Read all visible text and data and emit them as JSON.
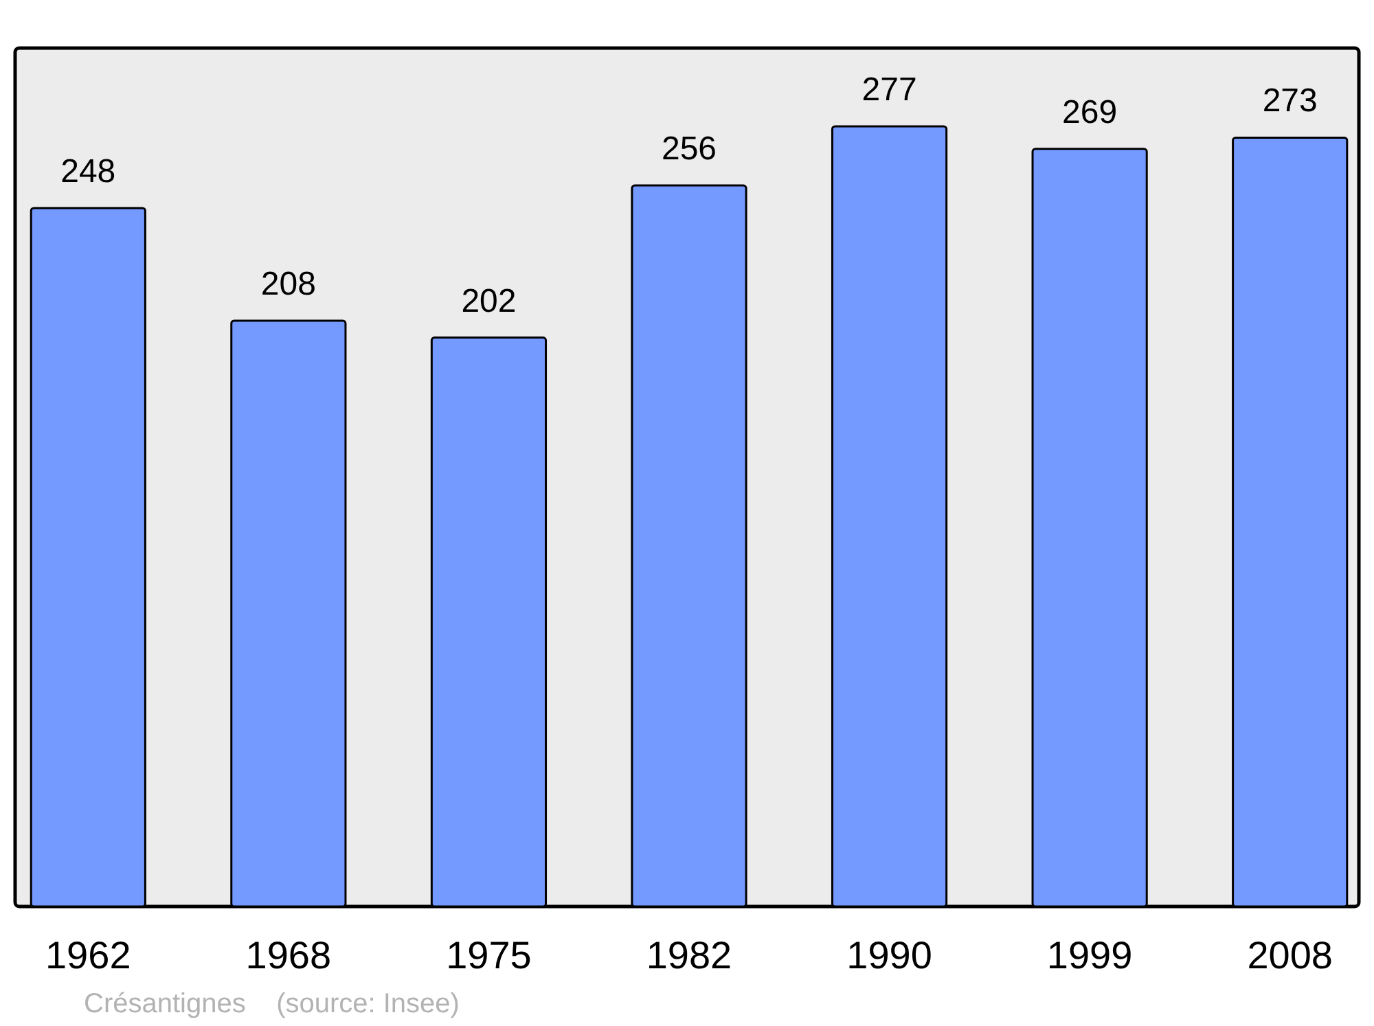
{
  "chart_data": {
    "type": "bar",
    "categories": [
      "1962",
      "1968",
      "1975",
      "1982",
      "1990",
      "1999",
      "2008"
    ],
    "values": [
      248,
      208,
      202,
      256,
      277,
      269,
      273
    ],
    "color": "#7499ff",
    "data_labels": true,
    "annotations": [
      "Crésantignes    (source: Insee)"
    ]
  }
}
